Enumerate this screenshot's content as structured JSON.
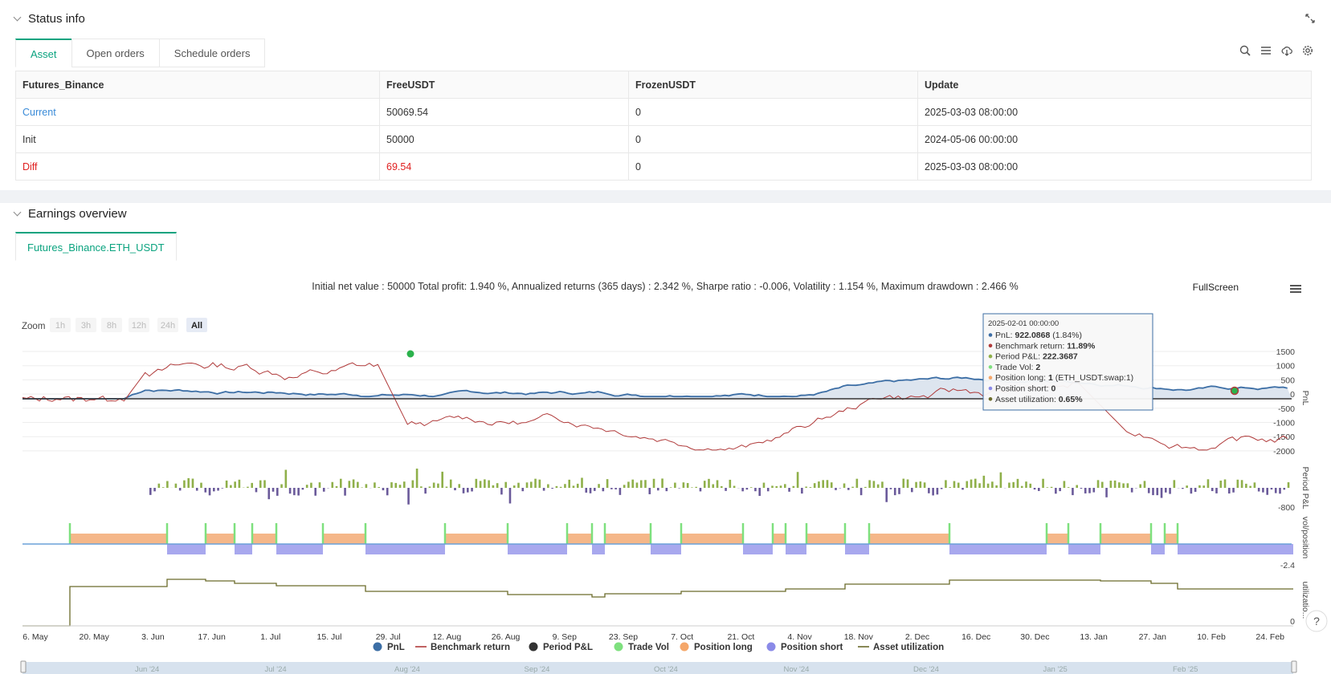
{
  "status": {
    "title": "Status info",
    "tabs": [
      "Asset",
      "Open orders",
      "Schedule orders"
    ],
    "table": {
      "headers": [
        "Futures_Binance",
        "FreeUSDT",
        "FrozenUSDT",
        "Update"
      ],
      "rows": [
        [
          "Current",
          "50069.54",
          "0",
          "2025-03-03 08:00:00"
        ],
        [
          "Init",
          "50000",
          "0",
          "2024-05-06 00:00:00"
        ],
        [
          "Diff",
          "69.54",
          "0",
          "2025-03-03 08:00:00"
        ]
      ]
    }
  },
  "earnings": {
    "title": "Earnings overview",
    "tab": "Futures_Binance.ETH_USDT",
    "summary": "Initial net value : 50000 Total profit: 1.940 %, Annualized returns (365 days) : 2.342 %, Sharpe ratio : -0.006, Volatility : 1.154 %, Maximum drawdown : 2.466 %",
    "fullscreen": "FullScreen",
    "zoom_label": "Zoom",
    "zoom_options": [
      "1h",
      "3h",
      "8h",
      "12h",
      "24h",
      "All"
    ],
    "zoom_selected": "All",
    "tooltip": {
      "date": "2025-02-01 00:00:00",
      "lines": [
        {
          "label": "PnL: ",
          "value": "922.0868",
          "extra": " (1.84%)",
          "color": "#3c6ea5"
        },
        {
          "label": "Benchmark return: ",
          "value": "11.89%",
          "extra": "",
          "color": "#b03a3a"
        },
        {
          "label": "Period P&L: ",
          "value": "222.3687",
          "extra": "",
          "color": "#8fb04a"
        },
        {
          "label": "Trade Vol: ",
          "value": "2",
          "extra": "",
          "color": "#7ee07e"
        },
        {
          "label": "Position long: ",
          "value": "1",
          "extra": " (ETH_USDT.swap:1)",
          "color": "#f5a76a"
        },
        {
          "label": "Position short: ",
          "value": "0",
          "extra": "",
          "color": "#8a8ae8"
        },
        {
          "label": "Asset utilization: ",
          "value": "0.65%",
          "extra": "",
          "color": "#6b6b2a"
        }
      ]
    },
    "axes": {
      "pnl_ticks": [
        "1500",
        "1000",
        "500",
        "0",
        "-500",
        "-1000",
        "-1500",
        "-2000"
      ],
      "pnl_label": "PnL",
      "period_label": "Period P&L",
      "period_tick": "-800",
      "pos_label": "vol/position",
      "pos_tick": "-2.4",
      "util_label": "utilizatio...",
      "util_tick": "0",
      "x_ticks": [
        "6. May",
        "20. May",
        "3. Jun",
        "17. Jun",
        "1. Jul",
        "15. Jul",
        "29. Jul",
        "12. Aug",
        "26. Aug",
        "9. Sep",
        "23. Sep",
        "7. Oct",
        "21. Oct",
        "4. Nov",
        "18. Nov",
        "2. Dec",
        "16. Dec",
        "30. Dec",
        "13. Jan",
        "27. Jan",
        "10. Feb",
        "24. Feb"
      ],
      "nav_ticks": [
        "Jun '24",
        "Jul '24",
        "Aug '24",
        "Sep '24",
        "Oct '24",
        "Nov '24",
        "Dec '24",
        "Jan '25",
        "Feb '25"
      ]
    },
    "legend": [
      {
        "name": "PnL",
        "color": "#3c6ea5",
        "shape": "circle"
      },
      {
        "name": "Benchmark return",
        "color": "#b03a3a",
        "shape": "line"
      },
      {
        "name": "Period P&L",
        "color": "#333333",
        "shape": "circle"
      },
      {
        "name": "Trade Vol",
        "color": "#7ee07e",
        "shape": "circle"
      },
      {
        "name": "Position long",
        "color": "#f5a76a",
        "shape": "circle"
      },
      {
        "name": "Position short",
        "color": "#8a8ae8",
        "shape": "circle"
      },
      {
        "name": "Asset utilization",
        "color": "#6b6b2a",
        "shape": "line"
      }
    ]
  }
}
